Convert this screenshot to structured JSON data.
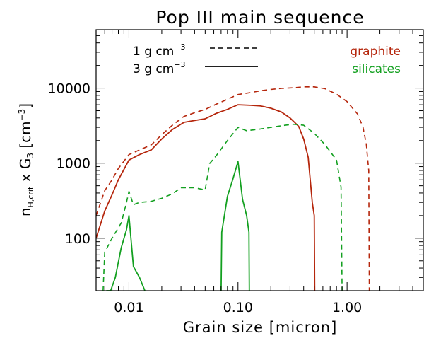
{
  "chart_data": {
    "type": "line",
    "title": "Pop III main sequence",
    "xlabel": "Grain size [micron]",
    "ylabel_main": "n",
    "ylabel_sub": "H,crit",
    "ylabel_rest": " x G",
    "ylabel_sub2": "3",
    "ylabel_unit": " [cm",
    "ylabel_unit_sup": "−3",
    "ylabel_unit_end": "]",
    "x_scale": "log",
    "y_scale": "log",
    "xlim": [
      0.005,
      5.0
    ],
    "ylim": [
      20,
      60000
    ],
    "x_ticks": [
      0.01,
      0.1,
      1.0
    ],
    "x_tick_labels": [
      "0.01",
      "0.10",
      "1.00"
    ],
    "y_ticks": [
      100,
      1000,
      10000
    ],
    "y_tick_labels": [
      "100",
      "1000",
      "10000"
    ],
    "legend_line_styles": [
      {
        "label_prefix": "1 g cm",
        "label_sup": "−3",
        "style": "dashed"
      },
      {
        "label_prefix": "3 g cm",
        "label_sup": "−3",
        "style": "solid"
      }
    ],
    "legend_materials": [
      {
        "label": "graphite",
        "color": "#b5260c"
      },
      {
        "label": "silicates",
        "color": "#13a020"
      }
    ],
    "series": [
      {
        "material": "graphite",
        "density": "1 g cm−3",
        "style": "dashed",
        "color": "#b5260c",
        "x": [
          0.005,
          0.006,
          0.007,
          0.008,
          0.01,
          0.0125,
          0.016,
          0.02,
          0.025,
          0.032,
          0.04,
          0.05,
          0.063,
          0.08,
          0.1,
          0.13,
          0.16,
          0.2,
          0.25,
          0.32,
          0.4,
          0.5,
          0.63,
          0.8,
          1.0,
          1.25,
          1.4,
          1.5,
          1.58,
          1.6
        ],
        "y": [
          200,
          430,
          600,
          850,
          1300,
          1500,
          1750,
          2400,
          3200,
          4200,
          4700,
          5200,
          6100,
          7100,
          8200,
          8700,
          9200,
          9600,
          9900,
          10100,
          10400,
          10400,
          9800,
          8300,
          6600,
          4500,
          3000,
          1800,
          800,
          20
        ]
      },
      {
        "material": "graphite",
        "density": "3 g cm−3",
        "style": "solid",
        "color": "#b5260c",
        "x": [
          0.005,
          0.006,
          0.007,
          0.008,
          0.01,
          0.0125,
          0.016,
          0.02,
          0.025,
          0.032,
          0.04,
          0.05,
          0.063,
          0.08,
          0.1,
          0.13,
          0.16,
          0.2,
          0.25,
          0.3,
          0.36,
          0.4,
          0.44,
          0.48,
          0.5,
          0.505
        ],
        "y": [
          100,
          230,
          380,
          600,
          1100,
          1300,
          1500,
          2100,
          2800,
          3500,
          3700,
          3900,
          4600,
          5200,
          6000,
          5900,
          5800,
          5400,
          4800,
          4000,
          3100,
          2100,
          1200,
          300,
          200,
          20
        ]
      },
      {
        "material": "silicates",
        "density": "1 g cm−3",
        "style": "dashed",
        "color": "#13a020",
        "x": [
          0.0058,
          0.006,
          0.007,
          0.0085,
          0.0095,
          0.01,
          0.011,
          0.0125,
          0.016,
          0.02,
          0.025,
          0.03,
          0.04,
          0.05,
          0.055,
          0.063,
          0.08,
          0.1,
          0.12,
          0.16,
          0.2,
          0.25,
          0.32,
          0.4,
          0.5,
          0.63,
          0.8,
          0.88,
          0.9
        ],
        "y": [
          20,
          65,
          100,
          160,
          300,
          420,
          280,
          300,
          310,
          340,
          390,
          470,
          470,
          440,
          990,
          1250,
          2000,
          3000,
          2700,
          2850,
          3000,
          3150,
          3300,
          3200,
          2500,
          1750,
          1100,
          480,
          20
        ]
      },
      {
        "material": "silicates",
        "density": "3 g cm−3",
        "style": "solid",
        "color": "#13a020",
        "x": [
          0.0062,
          0.0068,
          0.0075,
          0.0085,
          0.0095,
          0.01,
          0.011,
          0.0125,
          0.014
        ],
        "y": [
          20,
          20,
          30,
          75,
          130,
          200,
          42,
          30,
          20
        ]
      },
      {
        "material": "silicates",
        "density": "3 g cm−3",
        "style": "solid",
        "color": "#13a020",
        "x": [
          0.07,
          0.071,
          0.08,
          0.09,
          0.1,
          0.11,
          0.12,
          0.126,
          0.127
        ],
        "y": [
          20,
          120,
          360,
          620,
          1050,
          330,
          200,
          120,
          20
        ]
      }
    ]
  }
}
